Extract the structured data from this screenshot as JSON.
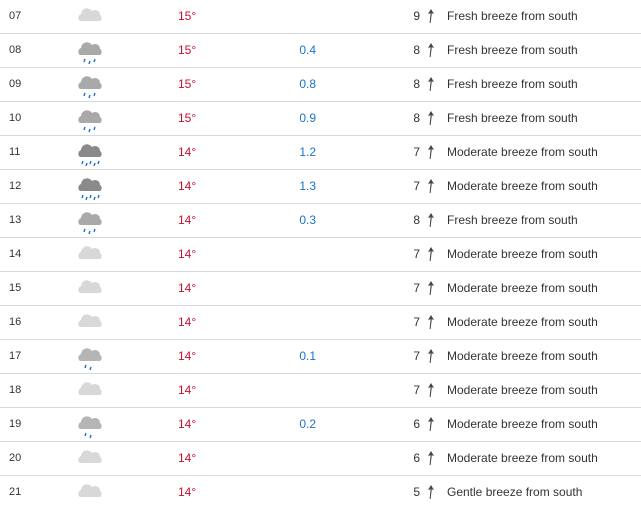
{
  "colors": {
    "temperature": "#c8102e",
    "precipitation": "#1a73c9",
    "divider": "#d9d9d9"
  },
  "rows": [
    {
      "hour": "07",
      "icon": "cloudy-icon",
      "temp": "15°",
      "precip": "",
      "wind_speed": "9",
      "wind_desc": "Fresh breeze from south"
    },
    {
      "hour": "08",
      "icon": "light-rain-icon",
      "temp": "15°",
      "precip": "0.4",
      "wind_speed": "8",
      "wind_desc": "Fresh breeze from south"
    },
    {
      "hour": "09",
      "icon": "light-rain-icon",
      "temp": "15°",
      "precip": "0.8",
      "wind_speed": "8",
      "wind_desc": "Fresh breeze from south"
    },
    {
      "hour": "10",
      "icon": "light-rain-icon",
      "temp": "15°",
      "precip": "0.9",
      "wind_speed": "8",
      "wind_desc": "Fresh breeze from south"
    },
    {
      "hour": "11",
      "icon": "rain-icon",
      "temp": "14°",
      "precip": "1.2",
      "wind_speed": "7",
      "wind_desc": "Moderate breeze from south"
    },
    {
      "hour": "12",
      "icon": "rain-icon",
      "temp": "14°",
      "precip": "1.3",
      "wind_speed": "7",
      "wind_desc": "Moderate breeze from south"
    },
    {
      "hour": "13",
      "icon": "light-rain-icon",
      "temp": "14°",
      "precip": "0.3",
      "wind_speed": "8",
      "wind_desc": "Fresh breeze from south"
    },
    {
      "hour": "14",
      "icon": "cloudy-icon",
      "temp": "14°",
      "precip": "",
      "wind_speed": "7",
      "wind_desc": "Moderate breeze from south"
    },
    {
      "hour": "15",
      "icon": "cloudy-icon",
      "temp": "14°",
      "precip": "",
      "wind_speed": "7",
      "wind_desc": "Moderate breeze from south"
    },
    {
      "hour": "16",
      "icon": "cloudy-icon",
      "temp": "14°",
      "precip": "",
      "wind_speed": "7",
      "wind_desc": "Moderate breeze from south"
    },
    {
      "hour": "17",
      "icon": "drizzle-icon",
      "temp": "14°",
      "precip": "0.1",
      "wind_speed": "7",
      "wind_desc": "Moderate breeze from south"
    },
    {
      "hour": "18",
      "icon": "cloudy-icon",
      "temp": "14°",
      "precip": "",
      "wind_speed": "7",
      "wind_desc": "Moderate breeze from south"
    },
    {
      "hour": "19",
      "icon": "drizzle-icon",
      "temp": "14°",
      "precip": "0.2",
      "wind_speed": "6",
      "wind_desc": "Moderate breeze from south"
    },
    {
      "hour": "20",
      "icon": "cloudy-icon",
      "temp": "14°",
      "precip": "",
      "wind_speed": "6",
      "wind_desc": "Moderate breeze from south"
    },
    {
      "hour": "21",
      "icon": "cloudy-icon",
      "temp": "14°",
      "precip": "",
      "wind_speed": "5",
      "wind_desc": "Gentle breeze from south"
    }
  ]
}
